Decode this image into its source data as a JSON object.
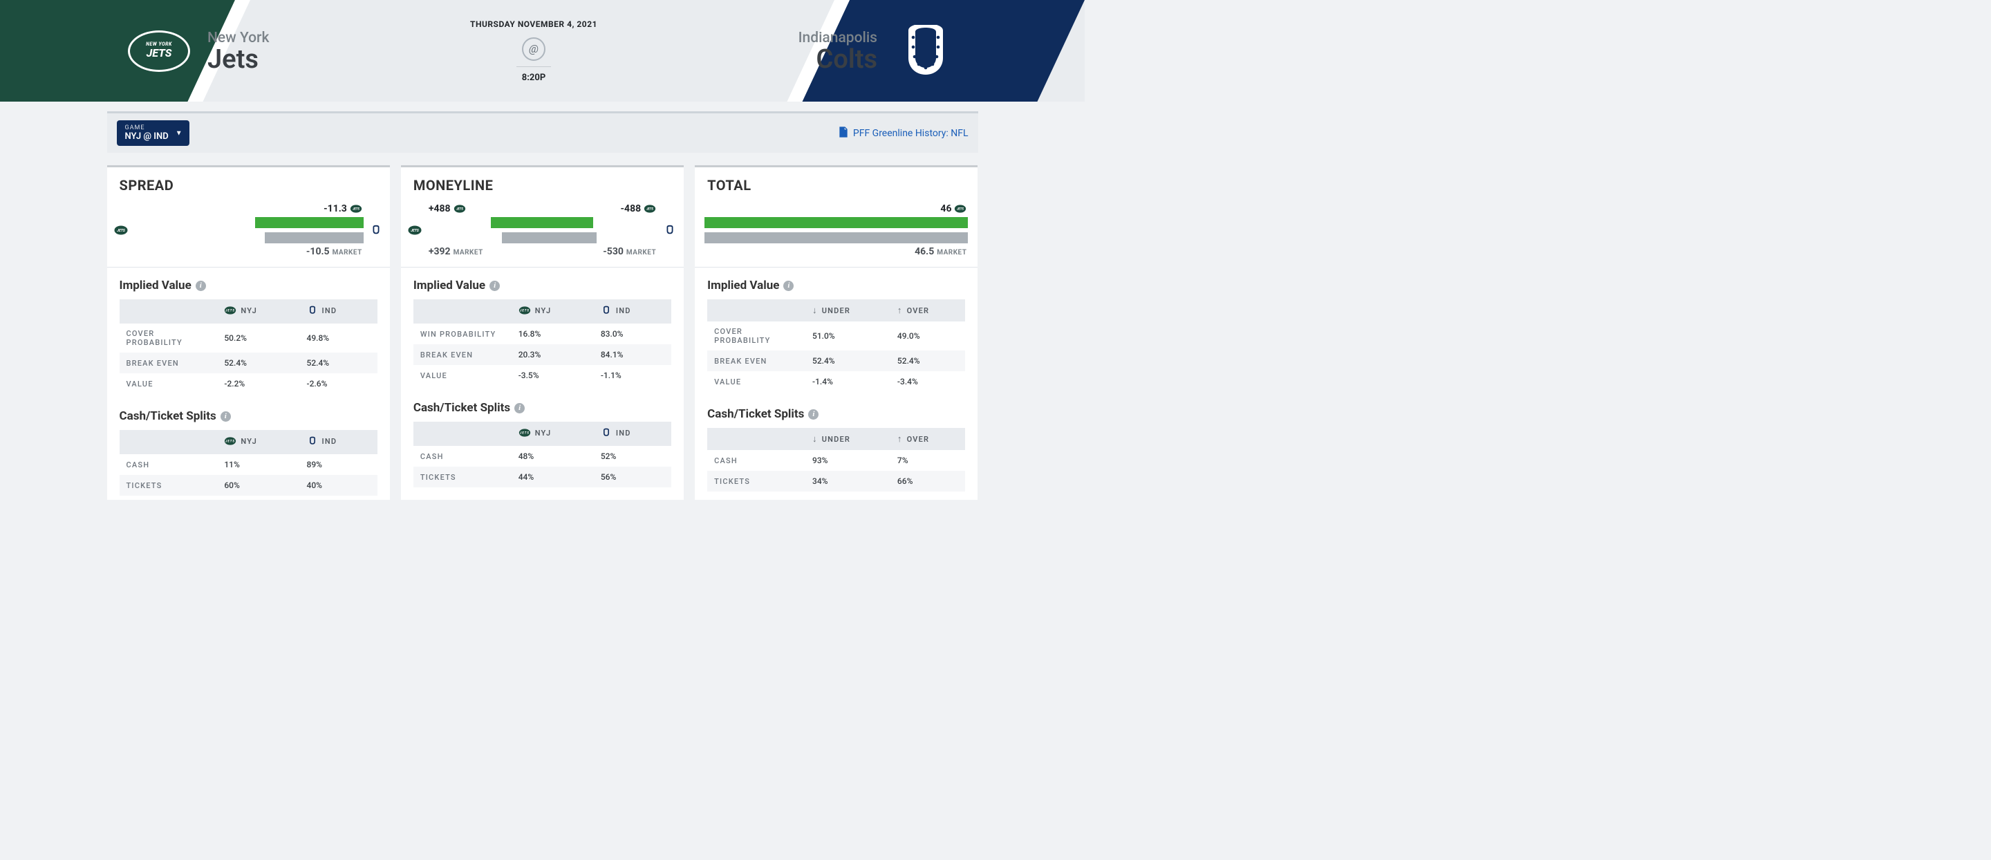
{
  "header": {
    "date": "THURSDAY NOVEMBER 4, 2021",
    "at": "@",
    "time": "8:20P",
    "away": {
      "city": "New York",
      "name": "Jets",
      "color": "#1d4d3e"
    },
    "home": {
      "city": "Indianapolis",
      "name": "Colts",
      "color": "#0f2c5c"
    }
  },
  "controls": {
    "game_label": "GAME",
    "game_value": "NYJ @ IND",
    "history_link": "PFF Greenline History: NFL"
  },
  "abbrev": {
    "away": "NYJ",
    "home": "IND"
  },
  "spread": {
    "title": "SPREAD",
    "top_value": "-11.3",
    "bottom_value": "-10.5",
    "market_label": "MARKET",
    "bar_green_pct": 47,
    "bar_gray_pct": 43,
    "implied": {
      "title": "Implied Value",
      "rows": [
        {
          "label": "COVER PROBABILITY",
          "a": "50.2%",
          "b": "49.8%"
        },
        {
          "label": "BREAK EVEN",
          "a": "52.4%",
          "b": "52.4%"
        },
        {
          "label": "VALUE",
          "a": "-2.2%",
          "b": "-2.6%"
        }
      ]
    },
    "splits": {
      "title": "Cash/Ticket Splits",
      "rows": [
        {
          "label": "CASH",
          "a": "11%",
          "b": "89%"
        },
        {
          "label": "TICKETS",
          "a": "60%",
          "b": "40%"
        }
      ]
    }
  },
  "moneyline": {
    "title": "MONEYLINE",
    "top_left": "+488",
    "top_right": "-488",
    "bottom_left": "+392",
    "bottom_right": "-530",
    "market_label": "MARKET",
    "bar_green_left_pct": 45,
    "bar_green_right_pct": 44,
    "bar_gray_left_pct": 35,
    "bar_gray_right_pct": 47,
    "implied": {
      "title": "Implied Value",
      "rows": [
        {
          "label": "WIN PROBABILITY",
          "a": "16.8%",
          "b": "83.0%"
        },
        {
          "label": "BREAK EVEN",
          "a": "20.3%",
          "b": "84.1%"
        },
        {
          "label": "VALUE",
          "a": "-3.5%",
          "b": "-1.1%"
        }
      ]
    },
    "splits": {
      "title": "Cash/Ticket Splits",
      "rows": [
        {
          "label": "CASH",
          "a": "48%",
          "b": "52%"
        },
        {
          "label": "TICKETS",
          "a": "44%",
          "b": "56%"
        }
      ]
    }
  },
  "total": {
    "title": "TOTAL",
    "top_value": "46",
    "bottom_value": "46.5",
    "market_label": "MARKET",
    "bar_green_pct": 100,
    "bar_gray_pct": 100,
    "col_a": "UNDER",
    "col_b": "OVER",
    "implied": {
      "title": "Implied Value",
      "rows": [
        {
          "label": "COVER PROBABILITY",
          "a": "51.0%",
          "b": "49.0%"
        },
        {
          "label": "BREAK EVEN",
          "a": "52.4%",
          "b": "52.4%"
        },
        {
          "label": "VALUE",
          "a": "-1.4%",
          "b": "-3.4%"
        }
      ]
    },
    "splits": {
      "title": "Cash/Ticket Splits",
      "rows": [
        {
          "label": "CASH",
          "a": "93%",
          "b": "7%"
        },
        {
          "label": "TICKETS",
          "a": "34%",
          "b": "66%"
        }
      ]
    }
  },
  "colors": {
    "green_bar": "#3eab3b",
    "gray_bar": "#a9b0b6"
  }
}
